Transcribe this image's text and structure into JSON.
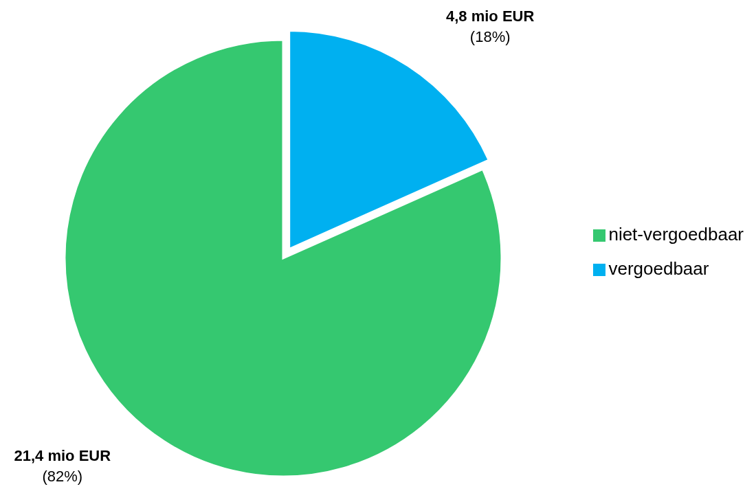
{
  "chart_data": {
    "type": "pie",
    "categories": [
      "vergoedbaar",
      "niet-vergoedbaar"
    ],
    "values": [
      4.8,
      21.4
    ],
    "colors": [
      "#00b0f0",
      "#35c870"
    ],
    "value_labels": [
      "4,8 mio EUR\n(18%)",
      "21,4 mio EUR\n(82%)"
    ],
    "legend": "right"
  }
}
